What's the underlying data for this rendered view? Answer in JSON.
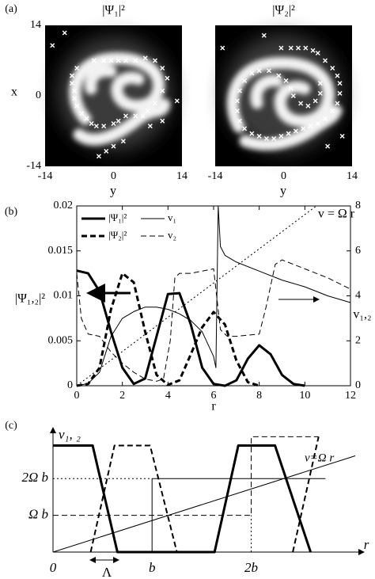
{
  "chart_data": [
    {
      "type": "scatter",
      "panel": "(a)",
      "title": "|Ψ₁|²",
      "x_label": "y",
      "y_label": "x",
      "xlim": [
        -14,
        14
      ],
      "ylim": [
        -14,
        14
      ],
      "xticks": [
        -14,
        0,
        14
      ],
      "yticks": [
        -14,
        0,
        14
      ],
      "color": "#ffffff",
      "x": [
        -12.5,
        -10,
        -7.5,
        -8.5,
        -8.5,
        -8,
        -8,
        -7.5,
        -6.5,
        -5.5,
        -4.5,
        -3.5,
        -2,
        0,
        1,
        2.5,
        4.5,
        6,
        7,
        8.5,
        10,
        11,
        10,
        8.5,
        6.5,
        4.5,
        2.5,
        1,
        -0.5,
        -2,
        -4,
        13,
        10,
        7.5,
        2,
        0,
        -1.5,
        -3
      ],
      "y": [
        10,
        12.5,
        5.5,
        4,
        2.5,
        1,
        -0.5,
        -2,
        -3.5,
        -4.5,
        -5.5,
        -6,
        -6,
        -5.5,
        -5,
        -4,
        -4,
        -4,
        -3,
        -1.5,
        1,
        3.5,
        5.5,
        7,
        7.5,
        7,
        7,
        7,
        7,
        7,
        7,
        -1,
        -5,
        -6,
        -9,
        -10,
        -11,
        -12
      ]
    },
    {
      "type": "scatter",
      "title": "|Ψ₂|²",
      "x_label": "y",
      "xlim": [
        -14,
        14
      ],
      "ylim": [
        -14,
        14
      ],
      "xticks": [
        -14,
        0,
        14
      ],
      "color": "#ffffff",
      "x": [
        -12.5,
        -4,
        -0.5,
        1.5,
        3,
        4.5,
        6,
        7,
        8.5,
        10,
        11,
        11.5,
        11.5,
        11,
        10,
        8.5,
        7,
        5.5,
        4,
        2.5,
        1,
        -0.5,
        -2,
        -3.5,
        -5,
        -6.5,
        -8,
        -9,
        -9.5,
        -9.5,
        -9,
        -8,
        -6.5,
        -5,
        -3,
        -1,
        0.5,
        1.5,
        2,
        3.5,
        5,
        6.5,
        7.5,
        7.5,
        12,
        9
      ],
      "y": [
        9.5,
        12,
        9.5,
        9.5,
        9.5,
        9.5,
        9,
        8.5,
        7,
        5.5,
        4,
        2.5,
        0.5,
        -1.5,
        -3,
        -4.5,
        -5.5,
        -6,
        -6.5,
        -7,
        -7.5,
        -8,
        -8.5,
        -8.5,
        -8,
        -7.5,
        -6.5,
        -5,
        -3,
        -1,
        1,
        3,
        4.5,
        5,
        5,
        4,
        3,
        1.5,
        0,
        -1.5,
        -2,
        -1,
        0.5,
        2.5,
        -8,
        -10
      ]
    },
    {
      "type": "line",
      "panel": "(b)",
      "x_label": "r",
      "y_label": "|Ψ₁,₂|²",
      "y2_label": "v₁,₂",
      "annotation": "v = Ω r",
      "xlim": [
        0,
        12
      ],
      "xticks": [
        0,
        2,
        4,
        6,
        8,
        10,
        12
      ],
      "ylim": [
        0,
        0.02
      ],
      "yticks": [
        0,
        0.005,
        0.01,
        0.015,
        0.02
      ],
      "y2lim": [
        0,
        8
      ],
      "y2ticks": [
        0,
        2,
        4,
        6,
        8
      ],
      "series": [
        {
          "name": "|Ψ₁|²",
          "color": "#000000",
          "width": 3,
          "dash": "solid",
          "x": [
            0,
            0.5,
            1,
            1.5,
            2,
            2.5,
            3,
            3.5,
            4,
            4.5,
            5,
            5.5,
            6,
            6.5,
            7,
            7.5,
            8,
            8.5,
            9,
            9.5,
            10
          ],
          "values": [
            0.0128,
            0.0125,
            0.0105,
            0.006,
            0.002,
            0.0002,
            0.0008,
            0.0055,
            0.0102,
            0.0103,
            0.0068,
            0.002,
            0.0002,
            0,
            0.0006,
            0.003,
            0.0045,
            0.0035,
            0.0012,
            0.0002,
            0
          ]
        },
        {
          "name": "|Ψ₂|²",
          "color": "#000000",
          "width": 3,
          "dash": "dashed",
          "x": [
            0,
            0.5,
            1,
            1.5,
            2,
            2.5,
            3,
            3.5,
            4,
            4.5,
            5,
            5.5,
            6,
            6.5,
            7,
            7.5,
            8
          ],
          "values": [
            0,
            0.0002,
            0.002,
            0.0085,
            0.0125,
            0.0115,
            0.006,
            0.0012,
            0.0001,
            0.0006,
            0.0035,
            0.0065,
            0.0082,
            0.0068,
            0.0028,
            0.0004,
            0
          ]
        },
        {
          "name": "v₁",
          "color": "#000000",
          "width": 1,
          "dash": "solid",
          "axis": "y2",
          "x": [
            0,
            0.5,
            1,
            1.5,
            2,
            2.5,
            3,
            3.5,
            4,
            4.5,
            5,
            5.5,
            6,
            6.1,
            6.2,
            6.3,
            6.5,
            7,
            8,
            9,
            10,
            11,
            12
          ],
          "values": [
            0,
            0.1,
            0.6,
            2.2,
            3,
            3.3,
            3.5,
            3.5,
            3.4,
            3.2,
            2.9,
            2.4,
            1.3,
            0.8,
            8,
            6.2,
            5.8,
            5.5,
            5.1,
            4.7,
            4.4,
            4,
            3.7
          ]
        },
        {
          "name": "v₂",
          "color": "#000000",
          "width": 1,
          "dash": "dashed",
          "axis": "y2",
          "x": [
            0,
            0.2,
            0.5,
            1,
            1.5,
            2,
            2.5,
            3,
            3.5,
            3.8,
            4.1,
            4.3,
            4.5,
            5,
            5.5,
            6,
            6.3,
            6.6,
            7,
            8,
            8.3,
            8.7,
            9,
            10,
            11,
            12
          ],
          "values": [
            5,
            3,
            2.3,
            2.2,
            1.5,
            1,
            0.6,
            0.3,
            0.2,
            0.3,
            2,
            4.8,
            5,
            5,
            5.1,
            5.2,
            2.5,
            2.2,
            2.2,
            2.3,
            3.5,
            5.4,
            5.6,
            5.2,
            4.8,
            4.3
          ]
        },
        {
          "color": "#000000",
          "width": 1,
          "dash": "dotted",
          "axis": "y2",
          "x": [
            0,
            10.5
          ],
          "values": [
            0,
            8
          ]
        }
      ]
    },
    {
      "type": "line",
      "panel": "(c)",
      "x_label": "r",
      "y_label": "v₁, ₂",
      "annotation": "v=Ω r",
      "width_label": "Λ",
      "xlim": [
        0,
        3.05
      ],
      "ylim": [
        0,
        3.3
      ],
      "xticks": [
        0,
        {
          "value": 1,
          "label": "b"
        },
        {
          "value": 2,
          "label": "2b"
        }
      ],
      "yticks": [
        {
          "value": 1,
          "label": "Ω b"
        },
        {
          "value": 2,
          "label": "2Ω b"
        }
      ],
      "series": [
        {
          "color": "#000000",
          "width": 3,
          "dash": "solid",
          "x": [
            0,
            0.4,
            0.65,
            1.63,
            1.87,
            2.24,
            2.6
          ],
          "values": [
            2.9,
            2.9,
            0,
            0,
            2.9,
            2.9,
            0
          ]
        },
        {
          "color": "#000000",
          "width": 2,
          "dash": "dashed",
          "x": [
            0.38,
            0.62,
            0.98,
            1.25,
            1.8,
            2.42,
            2.68
          ],
          "values": [
            0,
            2.9,
            2.9,
            0,
            null,
            0,
            3.14
          ]
        },
        {
          "color": "#000000",
          "width": 1,
          "dash": "dashed",
          "x": [
            0,
            2,
            2,
            2.68
          ],
          "values": [
            1,
            1,
            3.14,
            3.14
          ]
        },
        {
          "color": "#000000",
          "width": 1,
          "dash": "solid",
          "x": [
            1,
            1,
            2.75
          ],
          "values": [
            0,
            2,
            2
          ]
        },
        {
          "color": "#000000",
          "width": 1,
          "dash": "dotted",
          "x": [
            0,
            1,
            1.5,
            2,
            2
          ],
          "values": [
            2,
            2,
            null,
            0,
            1
          ]
        },
        {
          "color": "#000000",
          "width": 1,
          "dash": "solid",
          "x": [
            0,
            3.05
          ],
          "values": [
            0,
            2.62
          ]
        }
      ]
    }
  ]
}
